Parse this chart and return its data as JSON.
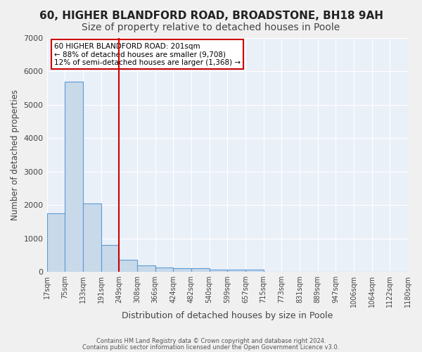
{
  "title1": "60, HIGHER BLANDFORD ROAD, BROADSTONE, BH18 9AH",
  "title2": "Size of property relative to detached houses in Poole",
  "xlabel": "Distribution of detached houses by size in Poole",
  "ylabel": "Number of detached properties",
  "footnote1": "Contains HM Land Registry data © Crown copyright and database right 2024.",
  "footnote2": "Contains public sector information licensed under the Open Government Licence v3.0.",
  "bin_labels": [
    "17sqm",
    "75sqm",
    "133sqm",
    "191sqm",
    "249sqm",
    "308sqm",
    "366sqm",
    "424sqm",
    "482sqm",
    "540sqm",
    "599sqm",
    "657sqm",
    "715sqm",
    "773sqm",
    "831sqm",
    "889sqm",
    "947sqm",
    "1006sqm",
    "1064sqm",
    "1122sqm",
    "1180sqm"
  ],
  "bar_values": [
    1750,
    5700,
    2050,
    800,
    350,
    200,
    120,
    100,
    100,
    70,
    70,
    70,
    0,
    0,
    0,
    0,
    0,
    0,
    0,
    0
  ],
  "bar_color": "#c8d9ea",
  "bar_edge_color": "#5b9bd5",
  "vline_color": "#cc0000",
  "annotation_text": "60 HIGHER BLANDFORD ROAD: 201sqm\n← 88% of detached houses are smaller (9,708)\n12% of semi-detached houses are larger (1,368) →",
  "annotation_box_color": "#ffffff",
  "annotation_box_edge": "#cc0000",
  "ylim": [
    0,
    7000
  ],
  "background_color": "#eaf0f8",
  "grid_color": "#ffffff",
  "title_fontsize": 11,
  "subtitle_fontsize": 10
}
